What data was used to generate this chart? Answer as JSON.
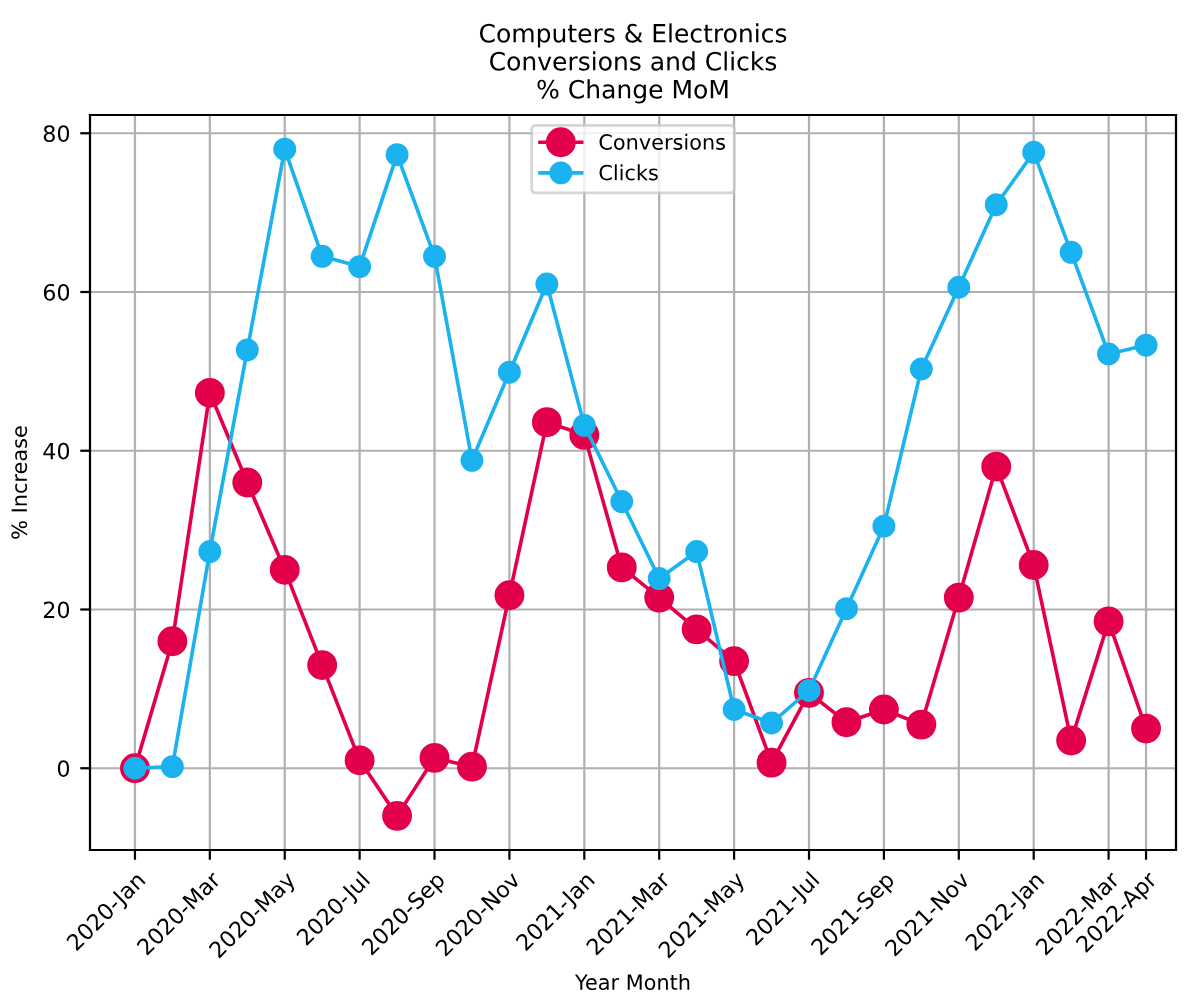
{
  "chart_data": {
    "type": "line",
    "title": "Computers & Electronics\nConversions and Clicks\n% Change MoM",
    "xlabel": "Year Month",
    "ylabel": "% Increase",
    "categories": [
      "2020-Jan",
      null,
      "2020-Mar",
      null,
      "2020-May",
      null,
      "2020-Jul",
      null,
      "2020-Sep",
      null,
      "2020-Nov",
      null,
      "2021-Jan",
      null,
      "2021-Mar",
      null,
      "2021-May",
      null,
      "2021-Jul",
      null,
      "2021-Sep",
      null,
      "2021-Nov",
      null,
      "2022-Jan",
      null,
      "2022-Mar",
      "2022-Apr"
    ],
    "series": [
      {
        "name": "Conversions",
        "color": "#e3004a",
        "values": [
          0,
          16,
          47.3,
          36,
          25,
          13,
          1,
          -6,
          1.3,
          0.2,
          21.8,
          43.6,
          42,
          25.3,
          21.5,
          17.5,
          13.5,
          0.7,
          9.5,
          5.8,
          7.4,
          5.5,
          21.5,
          38,
          25.6,
          3.5,
          18.5,
          5
        ]
      },
      {
        "name": "Clicks",
        "color": "#1ab2ef",
        "values": [
          0,
          0.2,
          27.3,
          52.7,
          78,
          64.5,
          63.2,
          77.3,
          64.5,
          38.8,
          49.9,
          61,
          43.2,
          33.6,
          23.9,
          27.3,
          7.4,
          5.7,
          9.8,
          20.1,
          30.5,
          50.3,
          60.6,
          71,
          77.6,
          65,
          52.2,
          53.3
        ]
      }
    ],
    "ylim": [
      -10.3,
      82.3
    ],
    "yticks": [
      0,
      20,
      40,
      60,
      80
    ],
    "grid": true,
    "legend": "top center",
    "marker": "circle",
    "line_style": "solid"
  }
}
